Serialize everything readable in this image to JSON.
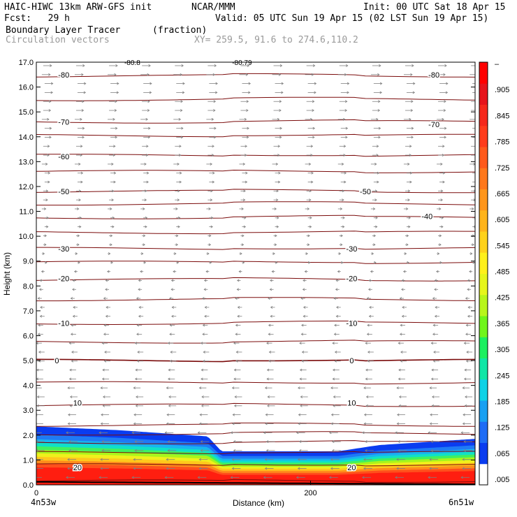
{
  "header": {
    "model": "HAIC-HIWC 13km ARW-GFS init",
    "org": "NCAR/MMM",
    "init": "Init: 00 UTC Sat 18 Apr 15",
    "fcst": "Fcst:   29 h",
    "valid": "Valid: 05 UTC Sun 19 Apr 15 (02 LST Sun 19 Apr 15)",
    "field": "Boundary Layer Tracer",
    "units": "(fraction)",
    "vectors": "Circulation vectors",
    "xy": "XY= 259.5, 91.6 to 274.6,110.2"
  },
  "colors": {
    "isotherm": "#7a0a0a",
    "vector": "#808080",
    "terrain": "#000000",
    "colorbar": [
      "#ffffff",
      "#0a3cf0",
      "#1e6cf5",
      "#19a0f2",
      "#0ed2e6",
      "#10e6a6",
      "#1cf060",
      "#70f51c",
      "#b8f51c",
      "#e6f51c",
      "#fff01c",
      "#ffd21c",
      "#ffb41c",
      "#ff961c",
      "#ff781c",
      "#ff5a1c",
      "#ff3c1c",
      "#f5281c",
      "#e6141c",
      "#ff0000"
    ]
  },
  "chart_data": {
    "type": "heatmap",
    "title": "Boundary Layer Tracer",
    "xlabel": "Distance (km)",
    "ylabel": "Height (km)",
    "xlim": [
      0,
      320
    ],
    "ylim": [
      0,
      17
    ],
    "x_ticks": [
      "0",
      "200"
    ],
    "x_endpoints": [
      "4n53w",
      "6n51w"
    ],
    "y_ticks": [
      "0.0",
      "1.0",
      "2.0",
      "3.0",
      "4.0",
      "5.0",
      "6.0",
      "7.0",
      "8.0",
      "9.0",
      "10.0",
      "11.0",
      "12.0",
      "13.0",
      "14.0",
      "15.0",
      "16.0",
      "17.0"
    ],
    "colorbar_labels": [
      ".005",
      ".065",
      ".125",
      ".185",
      ".245",
      ".305",
      ".365",
      ".425",
      ".485",
      ".545",
      ".605",
      ".665",
      ".725",
      ".785",
      ".845",
      ".905",
      "–"
    ],
    "boundary_layer_top_km": [
      {
        "x": 0,
        "top": 2.35
      },
      {
        "x": 60,
        "top": 2.2
      },
      {
        "x": 125,
        "top": 1.95
      },
      {
        "x": 135,
        "top": 1.35
      },
      {
        "x": 220,
        "top": 1.35
      },
      {
        "x": 250,
        "top": 1.6
      },
      {
        "x": 320,
        "top": 1.85
      }
    ],
    "isotherm_labels": [
      {
        "value": "-80",
        "x": 20,
        "y": 16.5
      },
      {
        "value": "-80",
        "x": 290,
        "y": 16.5
      },
      {
        "value": "-70",
        "x": 20,
        "y": 14.6
      },
      {
        "value": "-70",
        "x": 290,
        "y": 14.5
      },
      {
        "value": "-60",
        "x": 20,
        "y": 13.2
      },
      {
        "value": "-50",
        "x": 20,
        "y": 11.8
      },
      {
        "value": "-50",
        "x": 240,
        "y": 11.8
      },
      {
        "value": "-40",
        "x": 285,
        "y": 10.8
      },
      {
        "value": "-30",
        "x": 20,
        "y": 9.5
      },
      {
        "value": "-30",
        "x": 230,
        "y": 9.5
      },
      {
        "value": "-20",
        "x": 20,
        "y": 8.3
      },
      {
        "value": "-20",
        "x": 230,
        "y": 8.3
      },
      {
        "value": "-10",
        "x": 20,
        "y": 6.5
      },
      {
        "value": "-10",
        "x": 230,
        "y": 6.5
      },
      {
        "value": "0",
        "x": 15,
        "y": 5.0
      },
      {
        "value": "0",
        "x": 230,
        "y": 5.0
      },
      {
        "value": "10",
        "x": 30,
        "y": 3.3
      },
      {
        "value": "10",
        "x": 230,
        "y": 3.3
      },
      {
        "value": "20",
        "x": 30,
        "y": 0.7
      },
      {
        "value": "20",
        "x": 230,
        "y": 0.7
      }
    ],
    "top_clip_labels": [
      "-80.8",
      "-80.79"
    ]
  }
}
